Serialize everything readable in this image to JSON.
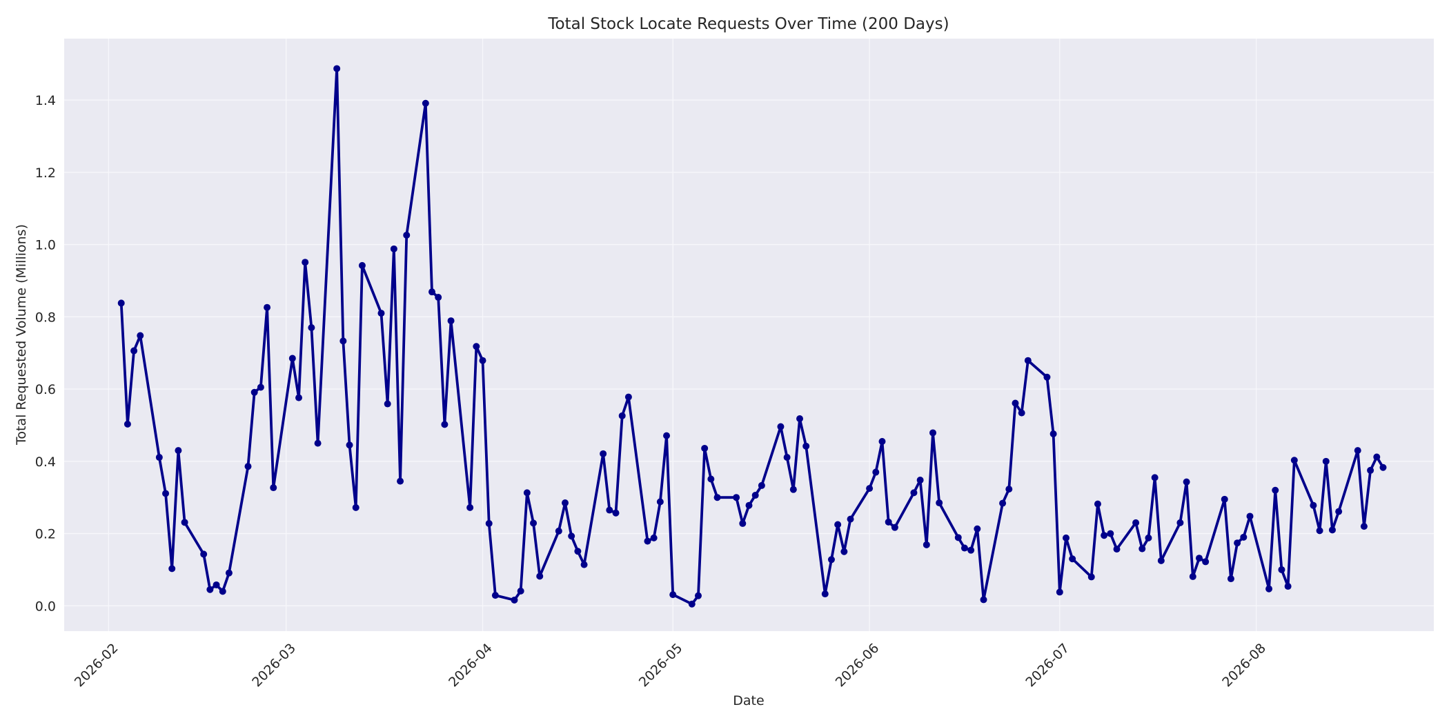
{
  "chart_data": {
    "type": "line",
    "title": "Total Stock Locate Requests Over Time (200 Days)",
    "xlabel": "Date",
    "ylabel": "Total Requested Volume (Millions)",
    "x_ticks": [
      "2026-02",
      "2026-03",
      "2026-04",
      "2026-05",
      "2026-06",
      "2026-07",
      "2026-08"
    ],
    "y_ticks": [
      "0.0",
      "0.2",
      "0.4",
      "0.6",
      "0.8",
      "1.0",
      "1.2",
      "1.4"
    ],
    "ylim": [
      -0.07,
      1.57
    ],
    "xlim": [
      "2026-01-25",
      "2026-08-29"
    ],
    "grid": true,
    "legend": "none",
    "colors": {
      "line": "#00008b",
      "axes_bg": "#eaeaf2",
      "grid": "#f7f7fb"
    },
    "series": [
      {
        "x": [
          "2026-02-03",
          "2026-02-04",
          "2026-02-05",
          "2026-02-06",
          "2026-02-09",
          "2026-02-10",
          "2026-02-11",
          "2026-02-12",
          "2026-02-13",
          "2026-02-16",
          "2026-02-17",
          "2026-02-18",
          "2026-02-19",
          "2026-02-20",
          "2026-02-23",
          "2026-02-24",
          "2026-02-25",
          "2026-02-26",
          "2026-02-27",
          "2026-03-02",
          "2026-03-03",
          "2026-03-04",
          "2026-03-05",
          "2026-03-06",
          "2026-03-09",
          "2026-03-10",
          "2026-03-11",
          "2026-03-12",
          "2026-03-13",
          "2026-03-16",
          "2026-03-17",
          "2026-03-18",
          "2026-03-19",
          "2026-03-20",
          "2026-03-23",
          "2026-03-24",
          "2026-03-25",
          "2026-03-26",
          "2026-03-27",
          "2026-03-30",
          "2026-03-31",
          "2026-04-01",
          "2026-04-02",
          "2026-04-03",
          "2026-04-06",
          "2026-04-07",
          "2026-04-08",
          "2026-04-09",
          "2026-04-10",
          "2026-04-13",
          "2026-04-14",
          "2026-04-15",
          "2026-04-16",
          "2026-04-17",
          "2026-04-20",
          "2026-04-21",
          "2026-04-22",
          "2026-04-23",
          "2026-04-24",
          "2026-04-27",
          "2026-04-28",
          "2026-04-29",
          "2026-04-30",
          "2026-05-01",
          "2026-05-04",
          "2026-05-05",
          "2026-05-06",
          "2026-05-07",
          "2026-05-08",
          "2026-05-11",
          "2026-05-12",
          "2026-05-13",
          "2026-05-14",
          "2026-05-15",
          "2026-05-18",
          "2026-05-19",
          "2026-05-20",
          "2026-05-21",
          "2026-05-22",
          "2026-05-25",
          "2026-05-26",
          "2026-05-27",
          "2026-05-28",
          "2026-05-29",
          "2026-06-01",
          "2026-06-02",
          "2026-06-03",
          "2026-06-04",
          "2026-06-05",
          "2026-06-08",
          "2026-06-09",
          "2026-06-10",
          "2026-06-11",
          "2026-06-12",
          "2026-06-15",
          "2026-06-16",
          "2026-06-17",
          "2026-06-18",
          "2026-06-19",
          "2026-06-22",
          "2026-06-23",
          "2026-06-24",
          "2026-06-25",
          "2026-06-26",
          "2026-06-29",
          "2026-06-30",
          "2026-07-01",
          "2026-07-02",
          "2026-07-03",
          "2026-07-06",
          "2026-07-07",
          "2026-07-08",
          "2026-07-09",
          "2026-07-10",
          "2026-07-13",
          "2026-07-14",
          "2026-07-15",
          "2026-07-16",
          "2026-07-17",
          "2026-07-20",
          "2026-07-21",
          "2026-07-22",
          "2026-07-23",
          "2026-07-24",
          "2026-07-27",
          "2026-07-28",
          "2026-07-29",
          "2026-07-30",
          "2026-07-31",
          "2026-08-03",
          "2026-08-04",
          "2026-08-05",
          "2026-08-06",
          "2026-08-07",
          "2026-08-10",
          "2026-08-11",
          "2026-08-12",
          "2026-08-13",
          "2026-08-14",
          "2026-08-17",
          "2026-08-18",
          "2026-08-19",
          "2026-08-20",
          "2026-08-21"
        ],
        "y": [
          0.838,
          0.503,
          0.706,
          0.748,
          0.411,
          0.311,
          0.103,
          0.43,
          0.231,
          0.143,
          0.045,
          0.058,
          0.04,
          0.091,
          0.386,
          0.591,
          0.605,
          0.826,
          0.327,
          0.685,
          0.576,
          0.951,
          0.77,
          0.45,
          1.487,
          0.733,
          0.445,
          0.272,
          0.942,
          0.81,
          0.559,
          0.988,
          0.345,
          1.026,
          1.391,
          0.869,
          0.854,
          0.502,
          0.789,
          0.272,
          0.718,
          0.679,
          0.228,
          0.029,
          0.016,
          0.041,
          0.313,
          0.229,
          0.082,
          0.207,
          0.285,
          0.193,
          0.151,
          0.114,
          0.421,
          0.265,
          0.257,
          0.526,
          0.578,
          0.179,
          0.188,
          0.288,
          0.471,
          0.031,
          0.005,
          0.028,
          0.436,
          0.351,
          0.3,
          0.3,
          0.228,
          0.278,
          0.306,
          0.333,
          0.496,
          0.411,
          0.322,
          0.518,
          0.442,
          0.033,
          0.128,
          0.225,
          0.15,
          0.24,
          0.325,
          0.37,
          0.455,
          0.232,
          0.217,
          0.313,
          0.348,
          0.169,
          0.479,
          0.285,
          0.189,
          0.16,
          0.154,
          0.213,
          0.017,
          0.284,
          0.323,
          0.561,
          0.534,
          0.679,
          0.633,
          0.476,
          0.038,
          0.188,
          0.13,
          0.08,
          0.282,
          0.195,
          0.2,
          0.157,
          0.23,
          0.158,
          0.188,
          0.355,
          0.125,
          0.23,
          0.343,
          0.081,
          0.132,
          0.122,
          0.295,
          0.075,
          0.174,
          0.19,
          0.248,
          0.047,
          0.32,
          0.1,
          0.054,
          0.403,
          0.278,
          0.208,
          0.4,
          0.21,
          0.261,
          0.43,
          0.22,
          0.375,
          0.412,
          0.383
        ]
      }
    ]
  }
}
